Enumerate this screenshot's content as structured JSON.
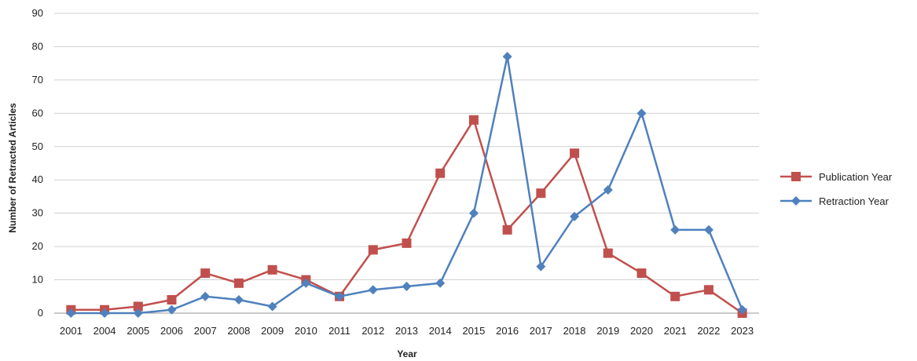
{
  "chart_data": {
    "type": "line",
    "xlabel": "Year",
    "ylabel": "Number of Retracted Articles",
    "ylim": [
      0,
      90
    ],
    "yticks": [
      0,
      10,
      20,
      30,
      40,
      50,
      60,
      70,
      80,
      90
    ],
    "grid": "horizontal",
    "legend_position": "right",
    "categories": [
      "2001",
      "2004",
      "2005",
      "2006",
      "2007",
      "2008",
      "2009",
      "2010",
      "2011",
      "2012",
      "2013",
      "2014",
      "2015",
      "2016",
      "2017",
      "2018",
      "2019",
      "2020",
      "2021",
      "2022",
      "2023"
    ],
    "series": [
      {
        "name": "Publication Year",
        "color": "#c0504d",
        "marker": "square",
        "values": [
          1,
          1,
          2,
          4,
          12,
          9,
          13,
          10,
          5,
          19,
          21,
          42,
          58,
          25,
          36,
          48,
          18,
          12,
          5,
          7,
          0
        ]
      },
      {
        "name": "Retraction Year",
        "color": "#4f81bd",
        "marker": "diamond",
        "values": [
          0,
          0,
          0,
          1,
          5,
          4,
          2,
          9,
          5,
          7,
          8,
          9,
          30,
          77,
          14,
          29,
          37,
          60,
          25,
          25,
          1
        ]
      }
    ]
  }
}
